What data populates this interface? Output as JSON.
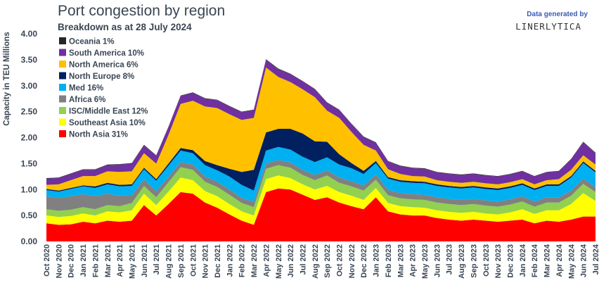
{
  "chart_data": {
    "type": "area",
    "stacked": true,
    "title": "Port congestion by region",
    "subtitle": "Breakdown as at 28 July 2024",
    "ylabel": "Capacity in TEU Millions",
    "xlabel": "",
    "ylim": [
      0,
      4.0
    ],
    "yticks": [
      "0.00",
      "0.50",
      "1.00",
      "1.50",
      "2.00",
      "2.50",
      "3.00",
      "3.50",
      "4.00"
    ],
    "legend_position": "top-left",
    "categories": [
      "Oct 2020",
      "Nov 2020",
      "Dec 2020",
      "Jan 2021",
      "Feb 2021",
      "Mar 2021",
      "Apr 2021",
      "May 2021",
      "Jun 2021",
      "Jul 2021",
      "Aug 2021",
      "Sep 2021",
      "Oct 2021",
      "Nov 2021",
      "Dec 2021",
      "Jan 2022",
      "Feb 2022",
      "Mar 2022",
      "Apr 2022",
      "May 2022",
      "Jun 2022",
      "Jul 2022",
      "Aug 2022",
      "Sep 2022",
      "Oct 2022",
      "Nov 2022",
      "Dec 2022",
      "Jan 2023",
      "Feb 2023",
      "Mar 2023",
      "Apr 2023",
      "May 2023",
      "Jun 2023",
      "Jul 2023",
      "Aug 2023",
      "Sep 2023",
      "Oct 2023",
      "Nov 2023",
      "Dec 2023",
      "Jan 2024",
      "Feb 2024",
      "Mar 2024",
      "Apr 2024",
      "May 2024",
      "Jun 2024",
      "Jul 2024"
    ],
    "series": [
      {
        "name": "North Asia",
        "legend": "North Asia 31%",
        "color": "#ff0000",
        "values": [
          0.35,
          0.32,
          0.33,
          0.38,
          0.35,
          0.4,
          0.38,
          0.4,
          0.7,
          0.5,
          0.72,
          0.95,
          0.92,
          0.75,
          0.65,
          0.52,
          0.4,
          0.32,
          0.95,
          1.02,
          1.0,
          0.9,
          0.8,
          0.85,
          0.75,
          0.68,
          0.62,
          0.85,
          0.58,
          0.52,
          0.5,
          0.5,
          0.45,
          0.42,
          0.4,
          0.42,
          0.4,
          0.38,
          0.4,
          0.42,
          0.35,
          0.4,
          0.38,
          0.42,
          0.48,
          0.48
        ]
      },
      {
        "name": "Southeast Asia",
        "legend": "Southeast Asia 10%",
        "color": "#ffff00",
        "values": [
          0.15,
          0.15,
          0.16,
          0.16,
          0.15,
          0.18,
          0.18,
          0.2,
          0.22,
          0.2,
          0.24,
          0.28,
          0.26,
          0.22,
          0.22,
          0.2,
          0.18,
          0.18,
          0.25,
          0.25,
          0.22,
          0.2,
          0.2,
          0.22,
          0.2,
          0.2,
          0.18,
          0.18,
          0.16,
          0.16,
          0.16,
          0.15,
          0.15,
          0.15,
          0.15,
          0.15,
          0.14,
          0.14,
          0.16,
          0.2,
          0.18,
          0.2,
          0.22,
          0.3,
          0.45,
          0.3
        ]
      },
      {
        "name": "ISC/Middle East",
        "legend": "ISC/Middle East 12%",
        "color": "#92d050",
        "values": [
          0.12,
          0.12,
          0.12,
          0.12,
          0.12,
          0.12,
          0.12,
          0.14,
          0.15,
          0.15,
          0.18,
          0.2,
          0.2,
          0.18,
          0.18,
          0.18,
          0.16,
          0.16,
          0.2,
          0.2,
          0.2,
          0.18,
          0.18,
          0.2,
          0.18,
          0.18,
          0.18,
          0.16,
          0.15,
          0.15,
          0.15,
          0.15,
          0.15,
          0.15,
          0.15,
          0.15,
          0.15,
          0.15,
          0.15,
          0.15,
          0.14,
          0.15,
          0.15,
          0.16,
          0.18,
          0.17
        ]
      },
      {
        "name": "Africa",
        "legend": "Africa 6%",
        "color": "#808080",
        "values": [
          0.25,
          0.25,
          0.26,
          0.25,
          0.25,
          0.22,
          0.2,
          0.15,
          0.12,
          0.12,
          0.1,
          0.1,
          0.1,
          0.1,
          0.1,
          0.1,
          0.1,
          0.1,
          0.1,
          0.1,
          0.1,
          0.1,
          0.1,
          0.1,
          0.1,
          0.1,
          0.1,
          0.1,
          0.1,
          0.1,
          0.1,
          0.1,
          0.1,
          0.1,
          0.1,
          0.1,
          0.1,
          0.1,
          0.1,
          0.1,
          0.1,
          0.1,
          0.1,
          0.1,
          0.1,
          0.1
        ]
      },
      {
        "name": "Med",
        "legend": "Med 16%",
        "color": "#00b0f0",
        "values": [
          0.12,
          0.12,
          0.14,
          0.15,
          0.16,
          0.18,
          0.18,
          0.18,
          0.2,
          0.2,
          0.22,
          0.22,
          0.22,
          0.22,
          0.22,
          0.25,
          0.25,
          0.22,
          0.25,
          0.25,
          0.25,
          0.25,
          0.25,
          0.25,
          0.25,
          0.25,
          0.22,
          0.22,
          0.22,
          0.22,
          0.22,
          0.22,
          0.22,
          0.22,
          0.22,
          0.22,
          0.22,
          0.22,
          0.22,
          0.22,
          0.22,
          0.22,
          0.22,
          0.25,
          0.3,
          0.28
        ]
      },
      {
        "name": "North Europe",
        "legend": "North Europe 8%",
        "color": "#002060",
        "values": [
          0.02,
          0.02,
          0.02,
          0.02,
          0.03,
          0.03,
          0.03,
          0.03,
          0.03,
          0.03,
          0.04,
          0.05,
          0.06,
          0.08,
          0.1,
          0.15,
          0.25,
          0.4,
          0.35,
          0.35,
          0.4,
          0.45,
          0.4,
          0.3,
          0.2,
          0.1,
          0.06,
          0.04,
          0.03,
          0.03,
          0.03,
          0.03,
          0.03,
          0.03,
          0.03,
          0.03,
          0.03,
          0.03,
          0.03,
          0.03,
          0.03,
          0.03,
          0.03,
          0.03,
          0.03,
          0.03
        ]
      },
      {
        "name": "North America",
        "legend": "North America 6%",
        "color": "#ffc000",
        "values": [
          0.08,
          0.12,
          0.15,
          0.18,
          0.2,
          0.22,
          0.25,
          0.25,
          0.28,
          0.3,
          0.55,
          0.85,
          0.95,
          1.05,
          1.1,
          1.05,
          1.0,
          1.0,
          1.25,
          1.0,
          0.9,
          0.85,
          0.85,
          0.6,
          0.7,
          0.6,
          0.5,
          0.2,
          0.15,
          0.12,
          0.1,
          0.1,
          0.08,
          0.08,
          0.08,
          0.08,
          0.08,
          0.08,
          0.08,
          0.08,
          0.08,
          0.08,
          0.1,
          0.12,
          0.12,
          0.12
        ]
      },
      {
        "name": "South America",
        "legend": "South America 10%",
        "color": "#7030a0",
        "values": [
          0.12,
          0.12,
          0.12,
          0.12,
          0.12,
          0.12,
          0.14,
          0.15,
          0.15,
          0.15,
          0.15,
          0.15,
          0.15,
          0.15,
          0.15,
          0.15,
          0.15,
          0.15,
          0.15,
          0.15,
          0.15,
          0.15,
          0.15,
          0.15,
          0.15,
          0.15,
          0.15,
          0.15,
          0.15,
          0.15,
          0.15,
          0.15,
          0.15,
          0.15,
          0.15,
          0.15,
          0.15,
          0.15,
          0.15,
          0.15,
          0.15,
          0.15,
          0.15,
          0.2,
          0.25,
          0.22
        ]
      },
      {
        "name": "Oceania",
        "legend": "Oceania 1%",
        "color": "#262626",
        "values": [
          0.01,
          0.01,
          0.01,
          0.01,
          0.01,
          0.01,
          0.01,
          0.01,
          0.01,
          0.01,
          0.01,
          0.01,
          0.01,
          0.01,
          0.01,
          0.01,
          0.01,
          0.01,
          0.01,
          0.01,
          0.01,
          0.01,
          0.01,
          0.01,
          0.01,
          0.01,
          0.01,
          0.01,
          0.01,
          0.01,
          0.01,
          0.01,
          0.01,
          0.01,
          0.01,
          0.01,
          0.01,
          0.01,
          0.01,
          0.01,
          0.01,
          0.01,
          0.01,
          0.01,
          0.01,
          0.01
        ]
      }
    ]
  },
  "credit": {
    "text": "Data generated by",
    "brand": "LINERLYTICA"
  }
}
